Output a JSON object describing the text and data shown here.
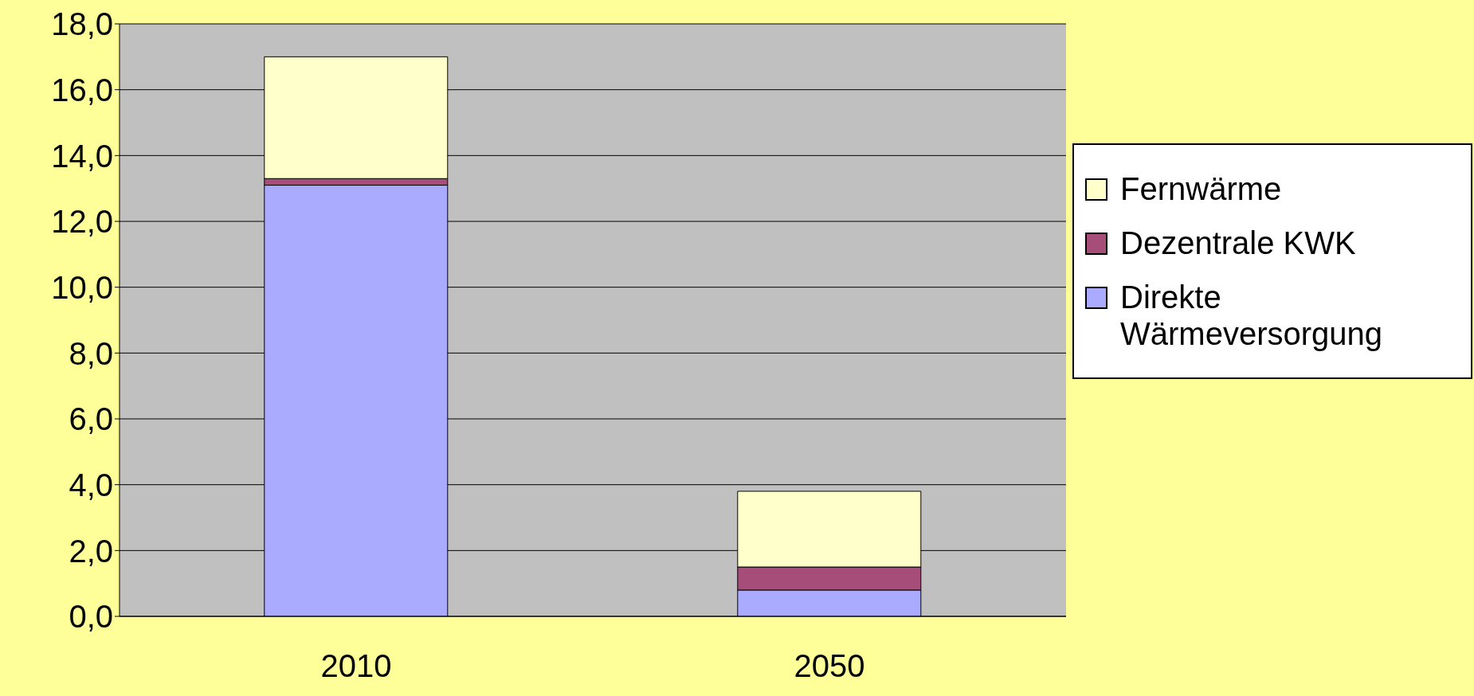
{
  "chart_data": {
    "type": "bar",
    "stacked": true,
    "categories": [
      "2010",
      "2050"
    ],
    "series": [
      {
        "name": "Direkte Wärmeversorgung",
        "color": "#aaaaff",
        "values": [
          13.1,
          0.8
        ]
      },
      {
        "name": "Dezentrale KWK",
        "color": "#a64d79",
        "values": [
          0.2,
          0.7
        ]
      },
      {
        "name": "Fernwärme",
        "color": "#ffffcc",
        "values": [
          3.7,
          2.3
        ]
      }
    ],
    "ylim": [
      0,
      18
    ],
    "yticks": [
      {
        "value": 0,
        "label": "0,0"
      },
      {
        "value": 2,
        "label": "2,0"
      },
      {
        "value": 4,
        "label": "4,0"
      },
      {
        "value": 6,
        "label": "6,0"
      },
      {
        "value": 8,
        "label": "8,0"
      },
      {
        "value": 10,
        "label": "10,0"
      },
      {
        "value": 12,
        "label": "12,0"
      },
      {
        "value": 14,
        "label": "14,0"
      },
      {
        "value": 16,
        "label": "16,0"
      },
      {
        "value": 18,
        "label": "18,0"
      }
    ],
    "grid": "y",
    "legend": "right"
  }
}
